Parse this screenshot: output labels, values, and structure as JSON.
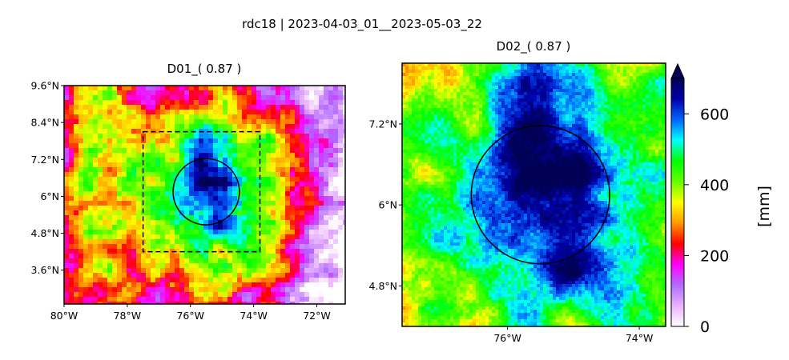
{
  "figure": {
    "suptitle": "rdc18 | 2023-04-03_01__2023-05-03_22"
  },
  "colors": {
    "colormap": [
      "#ffffff",
      "#e9b3ff",
      "#b06bff",
      "#ff00ff",
      "#ff0000",
      "#ff9900",
      "#ffff00",
      "#66ff00",
      "#00ff00",
      "#00ffff",
      "#0066ff",
      "#0000aa",
      "#000055"
    ],
    "frame": "#000000",
    "outline": "#000000"
  },
  "chart_data": [
    {
      "type": "heatmap",
      "title": "D01_( 0.87 )",
      "x_ticks": [
        "80°W",
        "78°W",
        "76°W",
        "74°W",
        "72°W"
      ],
      "x_tick_values": [
        -80,
        -78,
        -76,
        -74,
        -72
      ],
      "y_ticks": [
        "9.6°N",
        "8.4°N",
        "7.2°N",
        "6°N",
        "4.8°N",
        "3.6°N"
      ],
      "y_tick_values": [
        9.6,
        8.4,
        7.2,
        6.0,
        4.8,
        3.6
      ],
      "xlim": [
        -80,
        -71.1
      ],
      "ylim": [
        2.5,
        9.6
      ],
      "inner_domain_box": {
        "lon": [
          -77.5,
          -73.8
        ],
        "lat": [
          4.2,
          8.1
        ],
        "style": "dashed"
      },
      "circle": {
        "center_lon": -75.5,
        "center_lat": 6.15,
        "radius_deg": 1.05
      }
    },
    {
      "type": "heatmap",
      "title": "D02_( 0.87 )",
      "x_ticks": [
        "76°W",
        "74°W"
      ],
      "x_tick_values": [
        -76,
        -74
      ],
      "y_ticks": [
        "7.2°N",
        "6°N",
        "4.8°N"
      ],
      "y_tick_values": [
        7.2,
        6.0,
        4.8
      ],
      "xlim": [
        -77.6,
        -73.6
      ],
      "ylim": [
        4.2,
        8.1
      ],
      "circle": {
        "center_lon": -75.5,
        "center_lat": 6.15,
        "radius_deg": 1.05
      }
    }
  ],
  "colorbar": {
    "label": "[mm]",
    "min": 0,
    "max": 700,
    "ticks": [
      "0",
      "200",
      "400",
      "600"
    ],
    "tick_values": [
      0,
      200,
      400,
      600
    ],
    "extend": "max"
  }
}
